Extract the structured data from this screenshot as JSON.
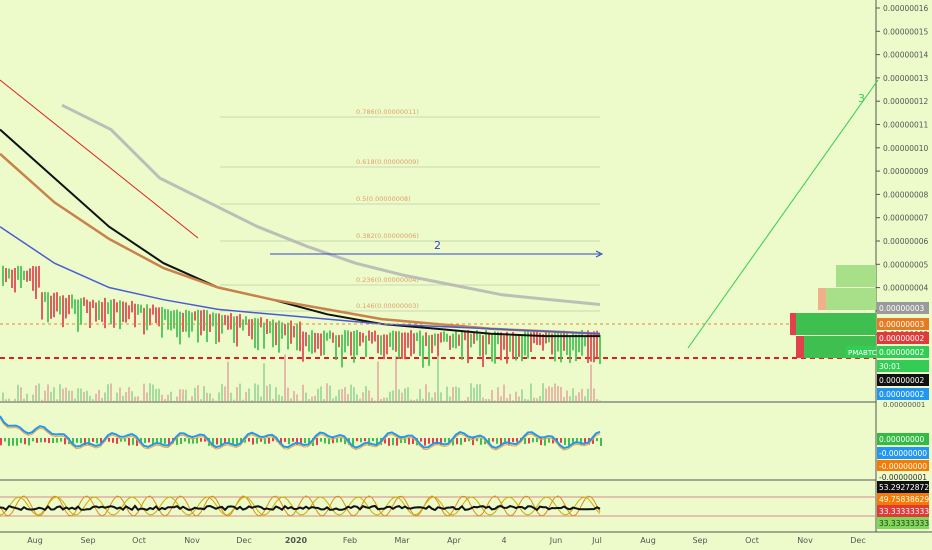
{
  "colors": {
    "background": "#ecfbc9",
    "axis_text": "#555555",
    "up_candle": "#3fbf4f",
    "down_candle": "#e0414b",
    "ma_black": "#111111",
    "ma_orange": "#c8824a",
    "ma_grey": "#b4b4b4",
    "ma_blue": "#4a5bd6",
    "fib": "#e0a070",
    "trend_red": "#e02020",
    "trend_green": "#33cc55",
    "arrow_blue": "#3344cc"
  },
  "price_axis": {
    "ticks": [
      "0.00000016",
      "0.00000015",
      "0.00000014",
      "0.00000013",
      "0.00000012",
      "0.00000011",
      "0.00000010",
      "0.00000009",
      "0.00000008",
      "0.00000007",
      "0.00000006",
      "0.00000005",
      "0.00000004",
      "0.00000003",
      "0.00000002"
    ]
  },
  "time_axis": {
    "labels": [
      "Aug",
      "Sep",
      "Oct",
      "Nov",
      "Dec",
      "2020",
      "Feb",
      "Mar",
      "Apr",
      "4",
      "Jun",
      "Jul",
      "Aug",
      "Sep",
      "Oct",
      "Nov",
      "Dec"
    ]
  },
  "fib_levels": [
    {
      "label": "0.786(0.00000011)"
    },
    {
      "label": "0.618(0.00000009)"
    },
    {
      "label": "0.5(0.00000008)"
    },
    {
      "label": "0.382(0.00000006)"
    },
    {
      "label": "0.236(0.00000004)"
    },
    {
      "label": "0.146(0.00000003)"
    }
  ],
  "annotations": {
    "wave2": "2",
    "wave3": "3"
  },
  "price_badges": [
    {
      "text": "0.00000003",
      "bg": "#9a9a9a",
      "fg": "#ffffff"
    },
    {
      "text": "0.00000003",
      "bg": "#e57c22",
      "fg": "#ffffff"
    },
    {
      "text": "0.00000002",
      "bg": "#e03a3a",
      "fg": "#ffffff"
    },
    {
      "text": "0.00000002",
      "bg": "#33cc55",
      "fg": "#ffffff"
    },
    {
      "text": "30:01",
      "bg": "#33cc55",
      "fg": "#ffffff"
    }
  ],
  "symbol_tag": "PMABTC",
  "volume_badges": [
    {
      "text": "0.00000002",
      "bg": "#111111",
      "fg": "#ffffff"
    },
    {
      "text": "0.00000002",
      "bg": "#2196f3",
      "fg": "#ffffff"
    }
  ],
  "volume_axis_top": "0.00000001",
  "macd_badges": [
    {
      "text": "0.00000000",
      "bg": "#33bb44",
      "fg": "#ffffff"
    },
    {
      "text": "-0.00000000",
      "bg": "#2196f3",
      "fg": "#ffffff"
    },
    {
      "text": "-0.00000000",
      "bg": "#f57c00",
      "fg": "#ffffff"
    },
    {
      "text": "-0.00000001",
      "bg": "#ecfbc9",
      "fg": "#333333"
    }
  ],
  "osc_badges": [
    {
      "text": "53.29272872",
      "bg": "#111111",
      "fg": "#ffffff"
    },
    {
      "text": "49.75838629",
      "bg": "#f57c00",
      "fg": "#ffffff"
    },
    {
      "text": "33.33333333",
      "bg": "#e03a3a",
      "fg": "#ffffff"
    },
    {
      "text": "33.33333333",
      "bg": "#7ed957",
      "fg": "#333333"
    }
  ],
  "chart_data": {
    "type": "line",
    "title": "",
    "series": [
      {
        "name": "",
        "values": [
          1.1e-07,
          9e-08,
          7e-08,
          5.5e-08,
          4.5e-08,
          4e-08,
          3.4e-08,
          3e-08,
          2.8e-08,
          2.6e-08,
          2.5e-08,
          2.5e-08
        ]
      },
      {
        "name": "",
        "values": [
          1e-07,
          8e-08,
          6.5e-08,
          5.3e-08,
          4.5e-08,
          4e-08,
          3.6e-08,
          3.2e-08,
          3e-08,
          2.8e-08,
          2.7e-08,
          2.6e-08
        ]
      },
      {
        "name": "",
        "values": [
          1.2e-07,
          1.1e-07,
          9e-08,
          8e-08,
          7e-08,
          6.2e-08,
          5.5e-08,
          5e-08,
          4.6e-08,
          4.2e-08,
          4e-08,
          3.8e-08
        ]
      },
      {
        "name": "",
        "values": [
          7e-08,
          5.5e-08,
          4.5e-08,
          4e-08,
          3.6e-08,
          3.4e-08,
          3.2e-08,
          3e-08,
          2.9e-08,
          2.8e-08,
          2.7e-08,
          2.6e-08
        ]
      }
    ],
    "ylim": [
      1.6e-08,
      1.6e-07
    ]
  }
}
